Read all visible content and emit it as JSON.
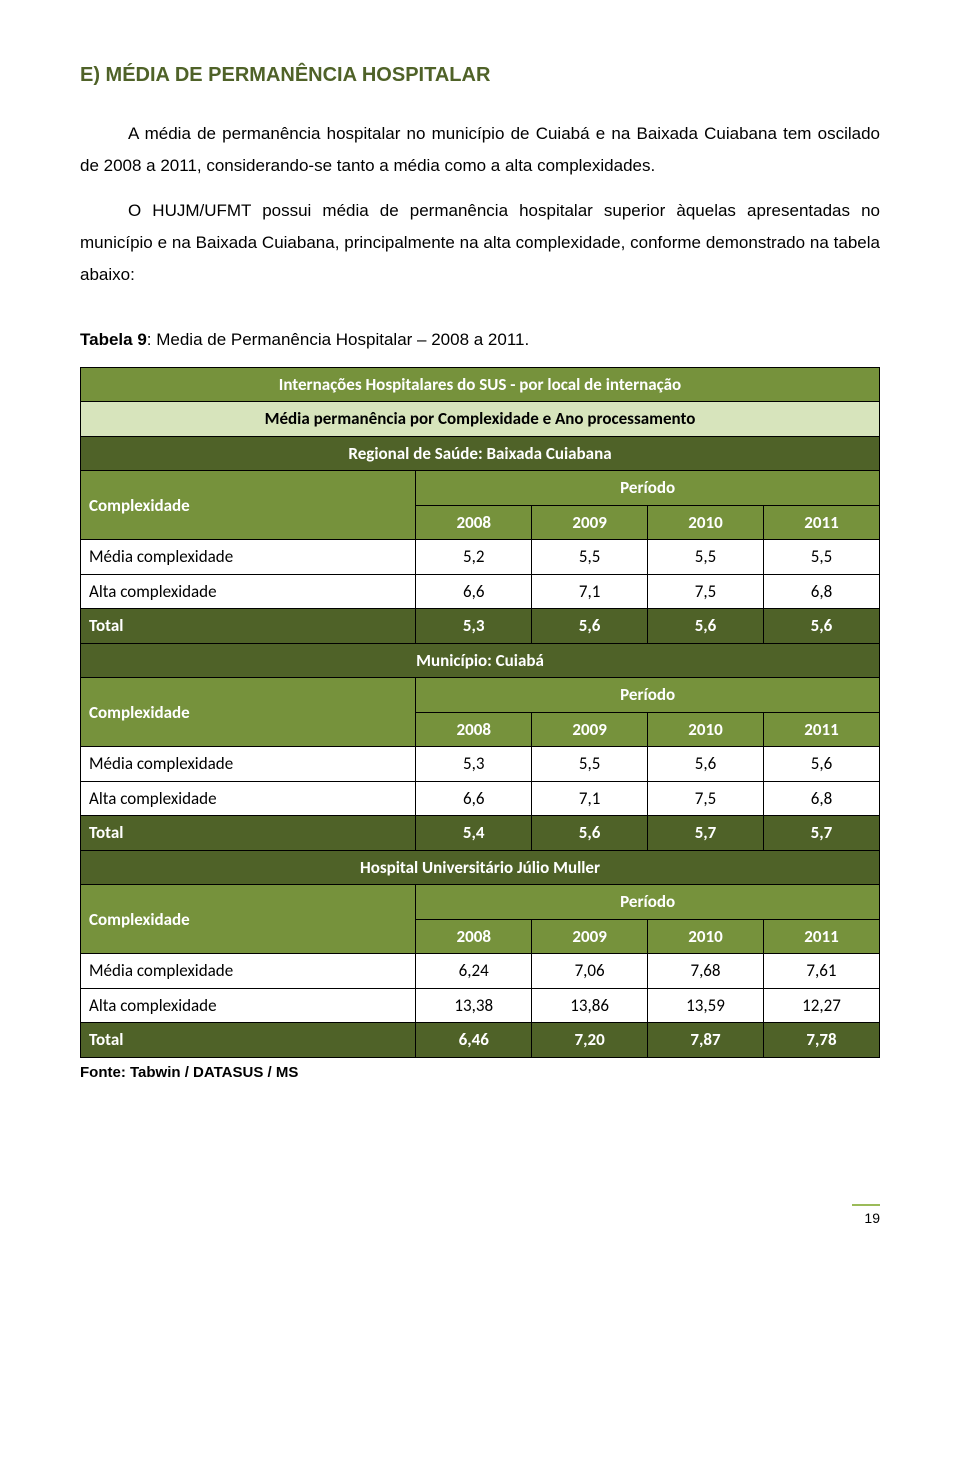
{
  "heading": "E) MÉDIA DE PERMANÊNCIA HOSPITALAR",
  "para1": "A média de permanência hospitalar no município de Cuiabá e na Baixada Cuiabana tem oscilado de 2008 a 2011, considerando-se tanto a média como a alta complexidades.",
  "para2": "O HUJM/UFMT possui média de permanência hospitalar superior àquelas apresentadas no município e na Baixada Cuiabana, principalmente na alta complexidade, conforme demonstrado na tabela abaixo:",
  "caption_bold": "Tabela 9",
  "caption_rest": ": Media de Permanência Hospitalar – 2008 a 2011.",
  "table": {
    "title": "Internações Hospitalares do SUS - por local de internação",
    "subtitle": "Média permanência por Complexidade e Ano processamento",
    "col_complex": "Complexidade",
    "col_period": "Período",
    "years": [
      "2008",
      "2009",
      "2010",
      "2011"
    ],
    "row_media": "Média complexidade",
    "row_alta": "Alta complexidade",
    "row_total": "Total",
    "sections": [
      {
        "name": "Regional de Saúde: Baixada Cuiabana",
        "media": [
          "5,2",
          "5,5",
          "5,5",
          "5,5"
        ],
        "alta": [
          "6,6",
          "7,1",
          "7,5",
          "6,8"
        ],
        "total": [
          "5,3",
          "5,6",
          "5,6",
          "5,6"
        ]
      },
      {
        "name": "Município: Cuiabá",
        "media": [
          "5,3",
          "5,5",
          "5,6",
          "5,6"
        ],
        "alta": [
          "6,6",
          "7,1",
          "7,5",
          "6,8"
        ],
        "total": [
          "5,4",
          "5,6",
          "5,7",
          "5,7"
        ]
      },
      {
        "name": "Hospital Universitário Júlio Muller",
        "media": [
          "6,24",
          "7,06",
          "7,68",
          "7,61"
        ],
        "alta": [
          "13,38",
          "13,86",
          "13,59",
          "12,27"
        ],
        "total": [
          "6,46",
          "7,20",
          "7,87",
          "7,78"
        ]
      }
    ],
    "colors": {
      "title_bg": "#76923c",
      "sub_bg": "#d7e4bc",
      "section_bg": "#4f6228",
      "header_bg": "#76923c",
      "total_bg": "#4f6228",
      "text_light": "#ffffff",
      "border": "#000000"
    }
  },
  "source": "Fonte: Tabwin / DATASUS / MS",
  "page_number": "19"
}
